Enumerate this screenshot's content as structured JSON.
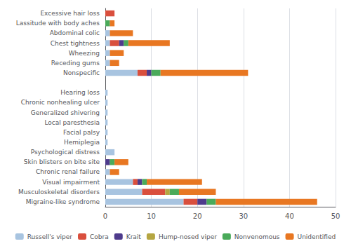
{
  "chart_data": {
    "type": "bar",
    "orientation": "horizontal",
    "stacked": true,
    "categories": [
      "Excessive hair loss",
      "Lassitude with body aches",
      "Abdominal colic",
      "Chest tightness",
      "Wheezing",
      "Receding gums",
      "Nonspecific",
      null,
      "Hearing loss",
      "Chronic nonhealing ulcer",
      "Generalized shivering",
      "Local paresthesia",
      "Facial palsy",
      "Hemiplegia",
      "Psychological distress",
      "Skin blisters on bite site",
      "Chronic renal failure",
      "Visual impairment",
      "Musculoskeletal disorders",
      "Migraine-like syndrome"
    ],
    "series": [
      {
        "name": "Russell's viper",
        "color": "#a8c4e0",
        "values": [
          0,
          0,
          1,
          1,
          1,
          1,
          7,
          0,
          0.5,
          0.5,
          0.5,
          0.5,
          0.5,
          0.5,
          2,
          0,
          1,
          6,
          8,
          17
        ]
      },
      {
        "name": "Cobra",
        "color": "#d94f3d",
        "values": [
          2,
          0,
          0,
          2,
          0,
          0,
          2,
          0,
          0,
          0,
          0,
          0,
          0,
          0,
          0,
          0,
          0,
          1,
          5,
          3
        ]
      },
      {
        "name": "Krait",
        "color": "#4e3b8c",
        "values": [
          0,
          0,
          0,
          1,
          0,
          0,
          1,
          0,
          0,
          0,
          0,
          0,
          0,
          0,
          0,
          1,
          0,
          1,
          0,
          2
        ]
      },
      {
        "name": "Hump-nosed viper",
        "color": "#b5a642",
        "values": [
          0,
          0,
          0,
          0,
          0,
          0,
          0,
          0,
          0,
          0,
          0,
          0,
          0,
          0,
          0,
          0,
          0,
          0,
          1,
          0
        ]
      },
      {
        "name": "Nonvenomous",
        "color": "#4aaa5a",
        "values": [
          0,
          1,
          0,
          1,
          0,
          0,
          2,
          0,
          0,
          0,
          0,
          0,
          0,
          0,
          0,
          1,
          0,
          1,
          2,
          2
        ]
      },
      {
        "name": "Unidentified",
        "color": "#e87722",
        "values": [
          0,
          1,
          5,
          9,
          3,
          2,
          19,
          0,
          0,
          0,
          0,
          0,
          0,
          0,
          0,
          3,
          2,
          12,
          8,
          22
        ]
      }
    ],
    "xlim": [
      0,
      50
    ],
    "xticks": [
      0,
      10,
      20,
      30,
      40,
      50
    ],
    "grid": true,
    "legend": "bottom"
  }
}
